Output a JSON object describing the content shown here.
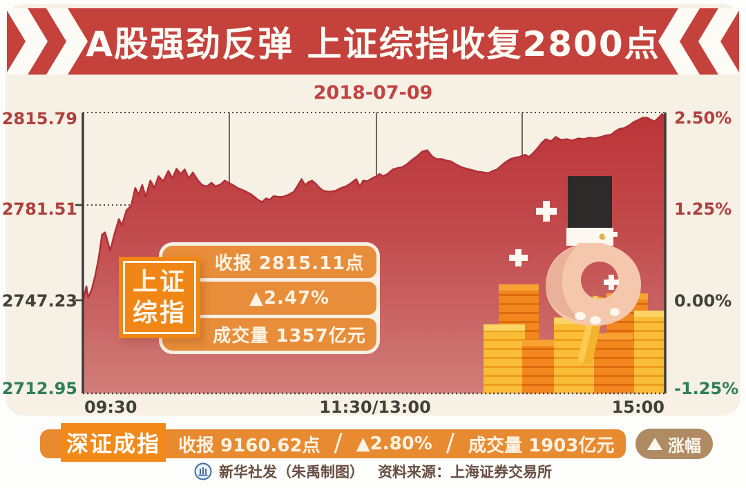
{
  "banner": {
    "title": "A股强劲反弹 上证综指收复2800点",
    "bg_color": "#c5413c"
  },
  "chart": {
    "date": "2018-07-09",
    "left_axis": [
      {
        "text": "2815.79"
      },
      {
        "text": "2781.51"
      },
      {
        "text": "2747.23"
      },
      {
        "text": "2712.95"
      }
    ],
    "right_axis": [
      {
        "text": "2.50%"
      },
      {
        "text": "1.25%"
      },
      {
        "text": "0.00%"
      },
      {
        "text": "-1.25%"
      }
    ],
    "x_axis": [
      {
        "text": "09:30"
      },
      {
        "text": "11:30/13:00"
      },
      {
        "text": "15:00"
      }
    ],
    "info_tag": {
      "line1": "上证",
      "line2": "综指"
    },
    "info_rows": [
      {
        "text": "收报  2815.11点"
      },
      {
        "text": "▲2.47%"
      },
      {
        "text": "成交量 1357亿元"
      }
    ]
  },
  "bottom_bar": {
    "tag": "深证成指",
    "close": "收报  9160.62点",
    "sep": "/",
    "change": "▲2.80%",
    "volume": "成交量 1903亿元",
    "legend_label": "涨幅"
  },
  "footer": {
    "credit": "新华社发（朱禹制图）",
    "source": "资料来源：上海证券交易所"
  },
  "colors": {
    "banner_red": "#c5413c",
    "canvas_cream": "#f6f0e5",
    "row_orange": "#e88d39",
    "tag_orange": "#f08616",
    "bar_orange": "#e88a30",
    "legend_tan": "#b08a62",
    "up_red": "#b0403c",
    "down_green": "#2f7e58",
    "area_top": "#bb3438",
    "area_bottom": "#d07d79"
  },
  "chart_data": {
    "type": "area",
    "title": "上证综指 2018-07-09 分时走势",
    "series_name": "上证综指",
    "x_ticks": [
      "09:30",
      "11:30/13:00",
      "15:00"
    ],
    "y_left_ticks_points": [
      2815.79,
      2781.51,
      2747.23,
      2712.95
    ],
    "y_right_ticks_pct": [
      2.5,
      1.25,
      0.0,
      -1.25
    ],
    "ylim_pct": [
      -1.25,
      2.5
    ],
    "prev_close": 2747.23,
    "close": 2815.11,
    "change_pct": 2.47,
    "volume": "1357亿元",
    "grid": "dotted horizontal lines at 2.50% and 1.25%, vertical hour gridlines, dotted baseline",
    "secondary_index": {
      "name": "深证成指",
      "close": 9160.62,
      "change_pct": 2.8,
      "volume": "1903亿元"
    },
    "points": [
      [
        0.0,
        -0.05
      ],
      [
        0.006,
        0.15
      ],
      [
        0.009,
        0.0
      ],
      [
        0.015,
        0.1
      ],
      [
        0.021,
        0.29
      ],
      [
        0.027,
        0.52
      ],
      [
        0.033,
        0.85
      ],
      [
        0.038,
        0.88
      ],
      [
        0.043,
        0.74
      ],
      [
        0.047,
        0.63
      ],
      [
        0.054,
        0.85
      ],
      [
        0.062,
        1.06
      ],
      [
        0.067,
        0.97
      ],
      [
        0.075,
        1.18
      ],
      [
        0.083,
        1.24
      ],
      [
        0.09,
        1.48
      ],
      [
        0.096,
        1.39
      ],
      [
        0.102,
        1.52
      ],
      [
        0.108,
        1.36
      ],
      [
        0.116,
        1.58
      ],
      [
        0.123,
        1.48
      ],
      [
        0.13,
        1.64
      ],
      [
        0.138,
        1.57
      ],
      [
        0.147,
        1.71
      ],
      [
        0.154,
        1.61
      ],
      [
        0.161,
        1.74
      ],
      [
        0.168,
        1.67
      ],
      [
        0.175,
        1.73
      ],
      [
        0.182,
        1.61
      ],
      [
        0.189,
        1.69
      ],
      [
        0.198,
        1.58
      ],
      [
        0.205,
        1.52
      ],
      [
        0.213,
        1.5
      ],
      [
        0.221,
        1.55
      ],
      [
        0.228,
        1.5
      ],
      [
        0.237,
        1.53
      ],
      [
        0.244,
        1.58
      ],
      [
        0.25,
        1.55
      ],
      [
        0.258,
        1.52
      ],
      [
        0.266,
        1.48
      ],
      [
        0.278,
        1.44
      ],
      [
        0.29,
        1.39
      ],
      [
        0.301,
        1.32
      ],
      [
        0.308,
        1.29
      ],
      [
        0.315,
        1.34
      ],
      [
        0.321,
        1.32
      ],
      [
        0.328,
        1.37
      ],
      [
        0.336,
        1.36
      ],
      [
        0.344,
        1.36
      ],
      [
        0.354,
        1.39
      ],
      [
        0.363,
        1.43
      ],
      [
        0.37,
        1.52
      ],
      [
        0.376,
        1.6
      ],
      [
        0.382,
        1.52
      ],
      [
        0.388,
        1.56
      ],
      [
        0.394,
        1.58
      ],
      [
        0.4,
        1.54
      ],
      [
        0.407,
        1.48
      ],
      [
        0.414,
        1.44
      ],
      [
        0.424,
        1.43
      ],
      [
        0.434,
        1.44
      ],
      [
        0.444,
        1.48
      ],
      [
        0.452,
        1.5
      ],
      [
        0.46,
        1.54
      ],
      [
        0.47,
        1.6
      ],
      [
        0.476,
        1.5
      ],
      [
        0.482,
        1.58
      ],
      [
        0.489,
        1.57
      ],
      [
        0.497,
        1.61
      ],
      [
        0.505,
        1.64
      ],
      [
        0.51,
        1.67
      ],
      [
        0.516,
        1.64
      ],
      [
        0.524,
        1.67
      ],
      [
        0.533,
        1.73
      ],
      [
        0.541,
        1.75
      ],
      [
        0.549,
        1.76
      ],
      [
        0.557,
        1.8
      ],
      [
        0.566,
        1.86
      ],
      [
        0.575,
        1.91
      ],
      [
        0.583,
        1.97
      ],
      [
        0.592,
        1.99
      ],
      [
        0.6,
        1.91
      ],
      [
        0.608,
        1.87
      ],
      [
        0.617,
        1.87
      ],
      [
        0.625,
        1.85
      ],
      [
        0.633,
        1.84
      ],
      [
        0.641,
        1.8
      ],
      [
        0.651,
        1.76
      ],
      [
        0.66,
        1.74
      ],
      [
        0.67,
        1.72
      ],
      [
        0.679,
        1.7
      ],
      [
        0.689,
        1.69
      ],
      [
        0.697,
        1.68
      ],
      [
        0.705,
        1.71
      ],
      [
        0.712,
        1.73
      ],
      [
        0.719,
        1.78
      ],
      [
        0.727,
        1.83
      ],
      [
        0.735,
        1.87
      ],
      [
        0.743,
        1.89
      ],
      [
        0.751,
        1.9
      ],
      [
        0.76,
        1.93
      ],
      [
        0.767,
        1.9
      ],
      [
        0.774,
        1.95
      ],
      [
        0.781,
        2.01
      ],
      [
        0.789,
        2.09
      ],
      [
        0.796,
        2.14
      ],
      [
        0.805,
        2.11
      ],
      [
        0.813,
        2.17
      ],
      [
        0.822,
        2.13
      ],
      [
        0.832,
        2.14
      ],
      [
        0.841,
        2.12
      ],
      [
        0.852,
        2.15
      ],
      [
        0.861,
        2.14
      ],
      [
        0.871,
        2.16
      ],
      [
        0.88,
        2.15
      ],
      [
        0.891,
        2.17
      ],
      [
        0.899,
        2.19
      ],
      [
        0.908,
        2.2
      ],
      [
        0.916,
        2.25
      ],
      [
        0.923,
        2.28
      ],
      [
        0.931,
        2.29
      ],
      [
        0.94,
        2.33
      ],
      [
        0.947,
        2.37
      ],
      [
        0.955,
        2.4
      ],
      [
        0.963,
        2.43
      ],
      [
        0.97,
        2.43
      ],
      [
        0.977,
        2.4
      ],
      [
        0.983,
        2.38
      ],
      [
        0.99,
        2.43
      ],
      [
        0.996,
        2.48
      ],
      [
        1.0,
        2.45
      ]
    ]
  }
}
